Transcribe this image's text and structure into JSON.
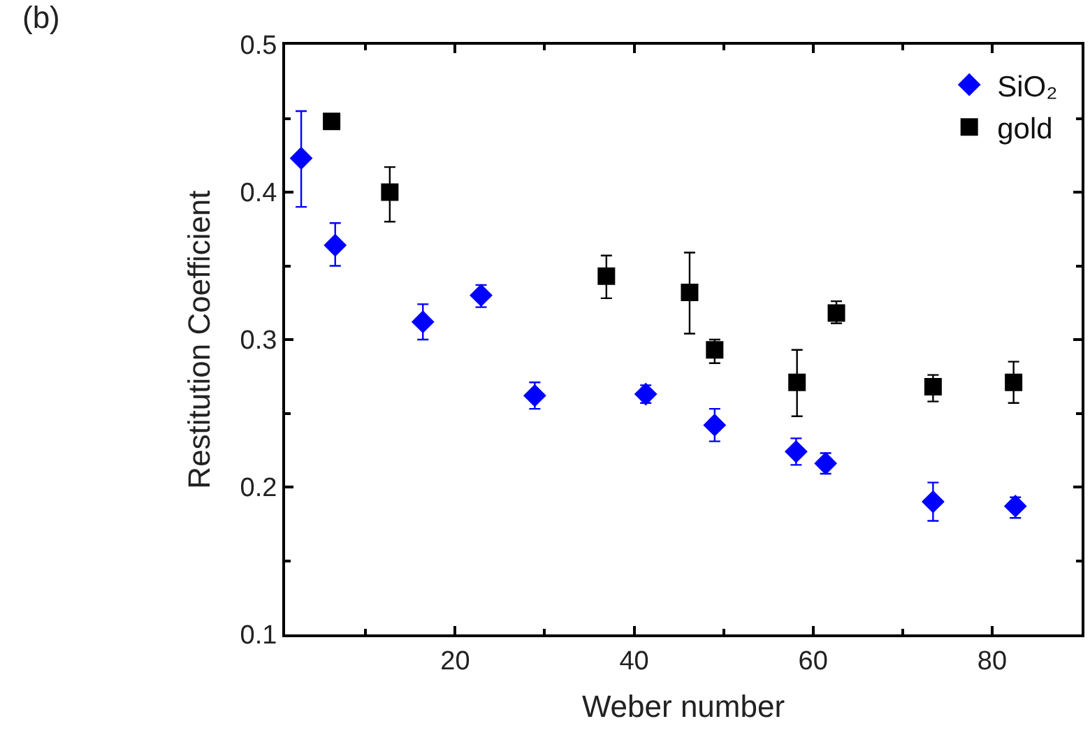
{
  "chart_data": {
    "type": "scatter",
    "xlabel": "Weber number",
    "ylabel": "Restitution Coefficient",
    "annotations": [
      "(b)"
    ],
    "xlim": [
      1,
      90
    ],
    "xticks": [
      20,
      40,
      60,
      80
    ],
    "ylim": [
      0.1,
      0.5
    ],
    "yticks": [
      0.1,
      0.2,
      0.3,
      0.4,
      0.5
    ],
    "legend": "top right",
    "series": [
      {
        "name": "SiO₂",
        "color": "#0000ff",
        "marker": "diamond",
        "x": [
          2.8,
          6.6,
          16.4,
          22.9,
          28.9,
          41.3,
          49.0,
          58.1,
          61.4,
          73.4,
          82.6
        ],
        "values": [
          0.423,
          0.364,
          0.312,
          0.33,
          0.262,
          0.263,
          0.242,
          0.224,
          0.216,
          0.19,
          0.187
        ],
        "errors": [
          [
            0.39,
            0.455
          ],
          [
            0.35,
            0.379
          ],
          [
            0.3,
            0.324
          ],
          [
            0.322,
            0.337
          ],
          [
            0.253,
            0.271
          ],
          [
            0.257,
            0.269
          ],
          [
            0.231,
            0.253
          ],
          [
            0.215,
            0.233
          ],
          [
            0.209,
            0.223
          ],
          [
            0.177,
            0.203
          ],
          [
            0.179,
            0.193
          ]
        ]
      },
      {
        "name": "gold",
        "color": "#000000",
        "marker": "square",
        "x": [
          6.2,
          12.7,
          36.9,
          46.2,
          49.0,
          58.2,
          62.6,
          73.4,
          82.4
        ],
        "values": [
          0.448,
          0.4,
          0.343,
          0.332,
          0.293,
          0.271,
          0.318,
          0.268,
          0.271
        ],
        "errors": [
          null,
          [
            0.38,
            0.417
          ],
          [
            0.328,
            0.357
          ],
          [
            0.304,
            0.359
          ],
          [
            0.284,
            0.3
          ],
          [
            0.248,
            0.293
          ],
          [
            0.311,
            0.326
          ],
          [
            0.258,
            0.276
          ],
          [
            0.257,
            0.285
          ]
        ]
      }
    ]
  }
}
